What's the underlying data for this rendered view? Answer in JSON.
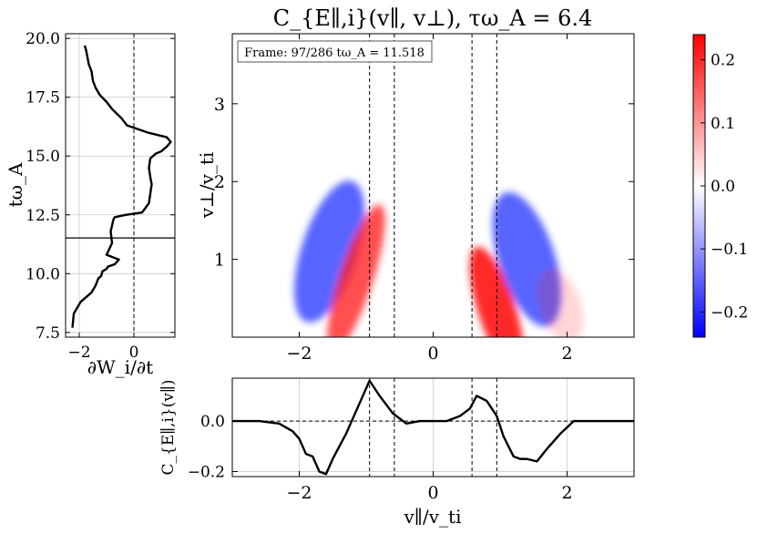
{
  "chart_data": [
    {
      "type": "line",
      "panel": "time-series",
      "title": "",
      "xlabel": "∂W_i/∂t",
      "ylabel": "tω_A",
      "xlim": [
        -2.5,
        1.5
      ],
      "ylim": [
        7.3,
        20.2
      ],
      "xticks": [
        {
          "v": -2,
          "label": "−2"
        },
        {
          "v": 0,
          "label": "0"
        }
      ],
      "yticks": [
        {
          "v": 7.5,
          "label": "7.5"
        },
        {
          "v": 10,
          "label": "10.0"
        },
        {
          "v": 12.5,
          "label": "12.5"
        },
        {
          "v": 15,
          "label": "15.0"
        },
        {
          "v": 17.5,
          "label": "17.5"
        },
        {
          "v": 20,
          "label": "20.0"
        }
      ],
      "vline_x": 0,
      "hline_y": 11.518,
      "x": [
        -2.25,
        -2.2,
        -1.95,
        -1.55,
        -1.4,
        -1.3,
        -1.2,
        -1.15,
        -1.0,
        -0.95,
        -0.7,
        -0.55,
        -1.0,
        -0.8,
        -0.85,
        -0.75,
        -0.7,
        -0.5,
        -0.3,
        0.3,
        0.55,
        0.6,
        0.65,
        0.6,
        0.55,
        0.6,
        0.8,
        1.0,
        1.2,
        1.35,
        1.2,
        0.5,
        -0.25,
        -0.45,
        -0.8,
        -1.0,
        -1.25,
        -1.4,
        -1.5,
        -1.55,
        -1.65,
        -1.7,
        -1.75,
        -1.8
      ],
      "y": [
        7.7,
        8.3,
        8.8,
        9.2,
        9.5,
        9.8,
        9.9,
        10.1,
        10.2,
        10.3,
        10.4,
        10.6,
        10.8,
        11.3,
        11.8,
        12.3,
        12.4,
        12.45,
        12.5,
        12.6,
        13.0,
        13.4,
        13.8,
        14.1,
        14.5,
        14.9,
        15.1,
        15.2,
        15.4,
        15.6,
        15.8,
        16.0,
        16.3,
        16.6,
        17.0,
        17.3,
        17.6,
        17.9,
        18.2,
        18.6,
        18.9,
        19.2,
        19.5,
        19.7
      ]
    },
    {
      "type": "heatmap",
      "panel": "main",
      "title": "C_{E∥,i}(v∥, v⊥), τω_A = 6.4",
      "xlabel": "v∥/v_ti",
      "ylabel": "v⊥/v_ti",
      "xlim": [
        -3,
        3
      ],
      "ylim": [
        0,
        3.9
      ],
      "xticks": [
        {
          "v": -2,
          "label": "−2"
        },
        {
          "v": 0,
          "label": "0"
        },
        {
          "v": 2,
          "label": "2"
        }
      ],
      "yticks": [
        {
          "v": 1,
          "label": "1"
        },
        {
          "v": 2,
          "label": "2"
        },
        {
          "v": 3,
          "label": "3"
        }
      ],
      "frame_label": "Frame: 97/286 tω_A = 11.518",
      "vlines": [
        -0.95,
        -0.58,
        0.58,
        0.95
      ],
      "color_range": [
        -0.24,
        0.24
      ],
      "features": [
        {
          "sign": "negative",
          "vpar": -1.55,
          "vperp": 1.1,
          "amplitude": -0.2
        },
        {
          "sign": "positive",
          "vpar": -1.15,
          "vperp": 0.75,
          "amplitude": 0.2
        },
        {
          "sign": "positive",
          "vpar": 0.95,
          "vperp": 0.35,
          "amplitude": 0.24
        },
        {
          "sign": "negative",
          "vpar": 1.4,
          "vperp": 1.0,
          "amplitude": -0.2
        },
        {
          "sign": "positive",
          "vpar": 1.9,
          "vperp": 0.4,
          "amplitude": 0.05
        }
      ]
    },
    {
      "type": "line",
      "panel": "reduced",
      "title": "",
      "xlabel": "v∥/v_ti",
      "ylabel": "C_{E∥,i}(v∥)",
      "xlim": [
        -3,
        3
      ],
      "ylim": [
        -0.22,
        0.17
      ],
      "xticks": [
        {
          "v": -2,
          "label": "−2"
        },
        {
          "v": 0,
          "label": "0"
        },
        {
          "v": 2,
          "label": "2"
        }
      ],
      "yticks": [
        {
          "v": -0.2,
          "label": "−0.2"
        },
        {
          "v": 0,
          "label": "0.0"
        }
      ],
      "hline_y": 0,
      "vlines": [
        -0.95,
        -0.58,
        0.58,
        0.95
      ],
      "x": [
        -3.0,
        -2.6,
        -2.3,
        -2.1,
        -2.0,
        -1.9,
        -1.8,
        -1.7,
        -1.6,
        -1.5,
        -1.3,
        -1.1,
        -0.95,
        -0.8,
        -0.6,
        -0.4,
        -0.2,
        0.0,
        0.2,
        0.4,
        0.55,
        0.65,
        0.8,
        0.95,
        1.05,
        1.2,
        1.3,
        1.4,
        1.55,
        1.7,
        1.9,
        2.1,
        2.3,
        2.6,
        3.0
      ],
      "y": [
        0.0,
        0.0,
        -0.01,
        -0.04,
        -0.07,
        -0.13,
        -0.14,
        -0.2,
        -0.21,
        -0.15,
        -0.05,
        0.07,
        0.16,
        0.1,
        0.03,
        -0.01,
        0.0,
        0.0,
        0.0,
        0.02,
        0.05,
        0.1,
        0.08,
        0.02,
        -0.06,
        -0.14,
        -0.15,
        -0.15,
        -0.16,
        -0.11,
        -0.05,
        0.0,
        0.0,
        0.0,
        0.0
      ]
    },
    {
      "type": "colorbar",
      "panel": "colorbar",
      "range": [
        -0.24,
        0.24
      ],
      "ticks": [
        {
          "v": 0.2,
          "label": "0.2"
        },
        {
          "v": 0.1,
          "label": "0.1"
        },
        {
          "v": 0,
          "label": "0.0"
        },
        {
          "v": -0.1,
          "label": "−0.1"
        },
        {
          "v": -0.2,
          "label": "−0.2"
        }
      ],
      "colors": {
        "negative": "#0000ff",
        "zero": "#ffffff",
        "positive": "#ff0000"
      }
    }
  ]
}
